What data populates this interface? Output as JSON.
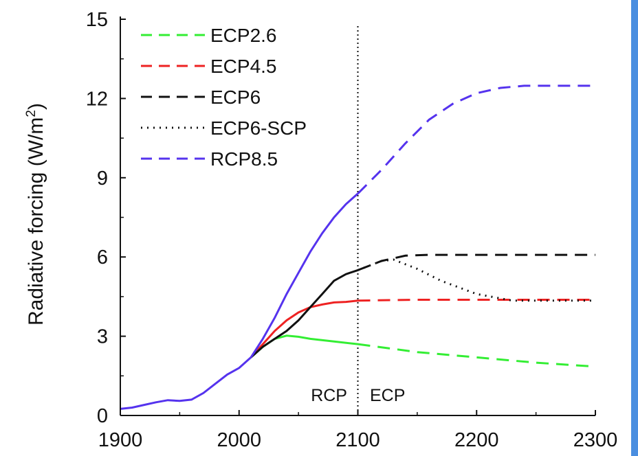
{
  "colors": {
    "accent_bar": "#4a8ee0",
    "ECP2.6": "#33ee33",
    "ECP4.5": "#ee2222",
    "ECP6": "#111111",
    "ECP6-SCP": "#111111",
    "RCP8.5": "#5533ee"
  },
  "chart_data": {
    "type": "line",
    "title": "",
    "xlabel": "",
    "ylabel": "Radiative forcing (W/m",
    "ylabel_sup": "2",
    "ylabel_close": ")",
    "xlim": [
      1900,
      2300
    ],
    "ylim": [
      0,
      15
    ],
    "xticks": [
      1900,
      2000,
      2100,
      2200,
      2300
    ],
    "yticks": [
      0,
      3,
      6,
      9,
      12,
      15
    ],
    "legend_position": "top-left",
    "divider_x": 2100,
    "annotations": {
      "left": "RCP",
      "right": "ECP"
    },
    "history": {
      "x": [
        1900,
        1910,
        1920,
        1930,
        1940,
        1950,
        1960,
        1970,
        1980,
        1990,
        2000,
        2010
      ],
      "y": [
        0.25,
        0.3,
        0.4,
        0.5,
        0.58,
        0.55,
        0.6,
        0.85,
        1.2,
        1.55,
        1.8,
        2.2
      ]
    },
    "series": [
      {
        "name": "ECP2.6",
        "style": "dashed",
        "x": [
          2010,
          2020,
          2030,
          2040,
          2050,
          2060,
          2080,
          2100,
          2150,
          2200,
          2250,
          2300
        ],
        "y": [
          2.2,
          2.6,
          2.9,
          3.02,
          2.98,
          2.9,
          2.8,
          2.7,
          2.4,
          2.2,
          2.0,
          1.85
        ]
      },
      {
        "name": "ECP4.5",
        "style": "dashed",
        "x": [
          2010,
          2020,
          2030,
          2040,
          2050,
          2060,
          2070,
          2080,
          2090,
          2100,
          2150,
          2200,
          2250,
          2300
        ],
        "y": [
          2.2,
          2.7,
          3.2,
          3.6,
          3.9,
          4.1,
          4.2,
          4.28,
          4.3,
          4.35,
          4.38,
          4.38,
          4.38,
          4.38
        ]
      },
      {
        "name": "ECP6",
        "style": "dashed",
        "x": [
          2010,
          2020,
          2030,
          2040,
          2050,
          2060,
          2070,
          2080,
          2090,
          2100,
          2120,
          2140,
          2160,
          2200,
          2300
        ],
        "y": [
          2.2,
          2.6,
          2.9,
          3.2,
          3.6,
          4.1,
          4.6,
          5.1,
          5.35,
          5.5,
          5.85,
          6.05,
          6.08,
          6.08,
          6.08
        ]
      },
      {
        "name": "ECP6-SCP",
        "style": "dotted",
        "x": [
          2100,
          2120,
          2130,
          2150,
          2170,
          2200,
          2230,
          2250,
          2300
        ],
        "y": [
          5.5,
          5.85,
          5.9,
          5.55,
          5.1,
          4.6,
          4.35,
          4.35,
          4.35
        ]
      },
      {
        "name": "RCP8.5",
        "style": "dashed",
        "x": [
          2010,
          2020,
          2030,
          2040,
          2050,
          2060,
          2070,
          2080,
          2090,
          2100,
          2120,
          2140,
          2160,
          2180,
          2200,
          2220,
          2240,
          2260,
          2280,
          2300
        ],
        "y": [
          2.2,
          2.9,
          3.7,
          4.6,
          5.4,
          6.2,
          6.9,
          7.5,
          8.0,
          8.4,
          9.3,
          10.3,
          11.2,
          11.8,
          12.2,
          12.4,
          12.48,
          12.48,
          12.48,
          12.48
        ]
      }
    ]
  }
}
